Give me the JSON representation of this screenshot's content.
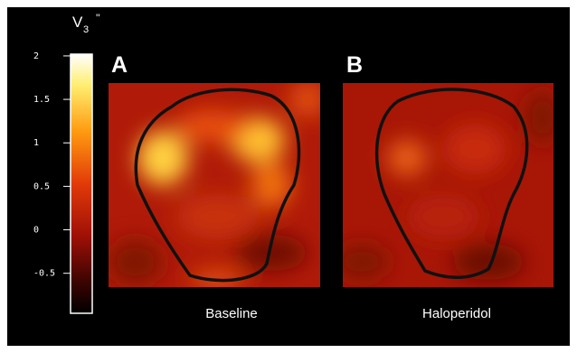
{
  "colorbar": {
    "symbol": "V",
    "subscript": "3",
    "prime": "''",
    "range": [
      -0.96,
      2.02
    ],
    "ticks": [
      2,
      1.5,
      1,
      0.5,
      0,
      -0.5
    ]
  },
  "panels": [
    {
      "letter": "A",
      "caption": "Baseline"
    },
    {
      "letter": "B",
      "caption": "Haloperidol"
    }
  ]
}
